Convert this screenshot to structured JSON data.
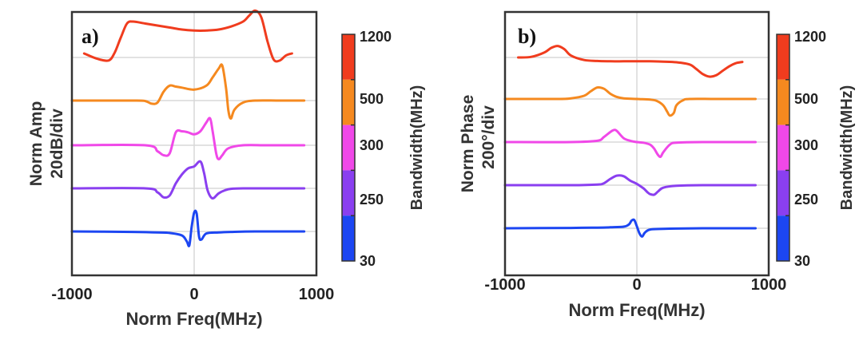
{
  "figure": {
    "panel_a": {
      "label": "a)",
      "xlabel": "Norm Freq(MHz)",
      "ylabel_line1": "Norm Amp",
      "ylabel_line2": "20dB/div",
      "xticks": [
        "-1000",
        "0",
        "1000"
      ],
      "colorbar_label": "Bandwidth(MHz)",
      "colorbar_ticks": [
        "1200",
        "500",
        "300",
        "250",
        "30"
      ]
    },
    "panel_b": {
      "label": "b)",
      "xlabel": "Norm Freq(MHz)",
      "ylabel_line1": "Norm Phase",
      "ylabel_line2": "200°/div",
      "xticks": [
        "-1000",
        "0",
        "1000"
      ],
      "colorbar_label": "Bandwidth(MHz)",
      "colorbar_ticks": [
        "1200",
        "500",
        "300",
        "250",
        "30"
      ]
    }
  },
  "chart_data": [
    {
      "type": "line",
      "panel": "a)",
      "xlabel": "Norm Freq(MHz)",
      "ylabel": "Norm Amp 20dB/div",
      "xlim": [
        -1000,
        1000
      ],
      "grid": true,
      "colors": {
        "1200": "#f03c1e",
        "500": "#f5891f",
        "300": "#f048e8",
        "250": "#8a3ff0",
        "30": "#1c46f2"
      },
      "colorbar": {
        "label": "Bandwidth(MHz)",
        "ticks": [
          "1200",
          "500",
          "300",
          "250",
          "30"
        ]
      },
      "series": [
        {
          "name": "1200",
          "color": "#f03c1e",
          "x": [
            -900,
            -800,
            -700,
            -650,
            -600,
            -550,
            -500,
            -400,
            -300,
            -200,
            -100,
            0,
            100,
            200,
            300,
            400,
            450,
            500,
            550,
            600,
            650,
            700,
            750,
            800
          ],
          "y": [
            0.4,
            -0.1,
            -0.3,
            0.5,
            2.0,
            3.4,
            3.6,
            3.4,
            3.2,
            3.0,
            2.8,
            2.7,
            2.7,
            2.8,
            3.1,
            3.6,
            4.2,
            4.7,
            4.0,
            1.6,
            -0.2,
            -0.3,
            0.2,
            0.4
          ]
        },
        {
          "name": "500",
          "color": "#f5891f",
          "x": [
            -1000,
            -500,
            -400,
            -350,
            -300,
            -250,
            -200,
            -150,
            -100,
            0,
            100,
            150,
            200,
            230,
            260,
            280,
            300,
            330,
            400,
            500,
            700,
            900
          ],
          "y": [
            0,
            0,
            -0.05,
            -0.3,
            -0.2,
            0.9,
            1.5,
            1.4,
            1.3,
            1.1,
            1.5,
            2.3,
            3.2,
            3.5,
            1.3,
            -1.0,
            -1.8,
            -0.9,
            -0.2,
            0,
            0,
            0
          ]
        },
        {
          "name": "300",
          "color": "#f048e8",
          "x": [
            -1000,
            -400,
            -300,
            -250,
            -200,
            -150,
            -100,
            -50,
            0,
            50,
            100,
            130,
            150,
            180,
            200,
            230,
            280,
            400,
            600,
            900
          ],
          "y": [
            0,
            0,
            -0.6,
            -1.0,
            -0.8,
            1.3,
            1.4,
            1.3,
            1.1,
            1.4,
            2.3,
            2.7,
            1.5,
            -0.8,
            -1.4,
            -1.0,
            -0.3,
            0,
            0,
            0
          ]
        },
        {
          "name": "250",
          "color": "#8a3ff0",
          "x": [
            -1000,
            -400,
            -300,
            -250,
            -200,
            -150,
            -100,
            -50,
            0,
            50,
            80,
            110,
            150,
            200,
            250,
            300,
            400,
            600,
            900
          ],
          "y": [
            0,
            0,
            -0.4,
            -0.9,
            -0.7,
            0.5,
            1.4,
            2.0,
            2.2,
            2.7,
            1.6,
            -0.2,
            -1.0,
            -0.5,
            -0.2,
            -0.05,
            0,
            0,
            0
          ]
        },
        {
          "name": "30",
          "color": "#1c46f2",
          "x": [
            -1000,
            -500,
            -300,
            -200,
            -100,
            -60,
            -40,
            -20,
            0,
            20,
            40,
            60,
            100,
            200,
            300,
            500,
            900
          ],
          "y": [
            0,
            -0.05,
            -0.1,
            -0.15,
            -0.4,
            -1.0,
            -1.4,
            0.5,
            1.9,
            1.8,
            -0.5,
            -0.8,
            -0.2,
            -0.1,
            -0.05,
            0,
            0
          ]
        }
      ]
    },
    {
      "type": "line",
      "panel": "b)",
      "xlabel": "Norm Freq(MHz)",
      "ylabel": "Norm Phase 200°/div",
      "xlim": [
        -1000,
        1000
      ],
      "grid": true,
      "colors": {
        "1200": "#f03c1e",
        "500": "#f5891f",
        "300": "#f048e8",
        "250": "#8a3ff0",
        "30": "#1c46f2"
      },
      "colorbar": {
        "label": "Bandwidth(MHz)",
        "ticks": [
          "1200",
          "500",
          "300",
          "250",
          "30"
        ]
      },
      "series": [
        {
          "name": "1200",
          "color": "#f03c1e",
          "x": [
            -900,
            -800,
            -700,
            -650,
            -600,
            -550,
            -500,
            -400,
            -300,
            -200,
            -100,
            0,
            100,
            200,
            300,
            400,
            450,
            500,
            550,
            600,
            650,
            700,
            750,
            800
          ],
          "y": [
            0.0,
            0.1,
            0.8,
            1.5,
            1.8,
            1.3,
            0.3,
            -0.4,
            -0.55,
            -0.6,
            -0.6,
            -0.6,
            -0.6,
            -0.65,
            -0.75,
            -1.1,
            -1.8,
            -2.6,
            -3.0,
            -2.8,
            -2.1,
            -1.4,
            -0.9,
            -0.7
          ]
        },
        {
          "name": "500",
          "color": "#f5891f",
          "x": [
            -1000,
            -600,
            -500,
            -400,
            -350,
            -300,
            -250,
            -200,
            -150,
            -100,
            0,
            100,
            150,
            200,
            230,
            250,
            280,
            300,
            350,
            400,
            600,
            900
          ],
          "y": [
            0,
            0,
            0.1,
            0.5,
            1.2,
            1.8,
            1.6,
            0.8,
            0.3,
            0.1,
            0,
            -0.1,
            -0.3,
            -1.0,
            -2.0,
            -2.6,
            -2.2,
            -1.0,
            -0.2,
            0,
            0,
            0
          ]
        },
        {
          "name": "300",
          "color": "#f048e8",
          "x": [
            -1000,
            -500,
            -300,
            -250,
            -200,
            -170,
            -150,
            -100,
            -50,
            0,
            50,
            100,
            130,
            160,
            180,
            200,
            250,
            300,
            500,
            900
          ],
          "y": [
            0,
            0,
            0.2,
            0.8,
            1.6,
            1.9,
            1.7,
            0.6,
            0.2,
            0,
            -0.1,
            -0.4,
            -1.0,
            -2.0,
            -2.3,
            -1.6,
            -0.4,
            -0.1,
            0,
            0
          ]
        },
        {
          "name": "250",
          "color": "#8a3ff0",
          "x": [
            -1000,
            -500,
            -300,
            -250,
            -200,
            -150,
            -100,
            -50,
            0,
            50,
            80,
            100,
            130,
            160,
            200,
            300,
            500,
            900
          ],
          "y": [
            0,
            0,
            0.1,
            0.3,
            1.0,
            1.5,
            1.4,
            0.7,
            0.2,
            -0.5,
            -1.1,
            -1.4,
            -1.5,
            -1.0,
            -0.4,
            -0.1,
            0,
            0
          ]
        },
        {
          "name": "30",
          "color": "#1c46f2",
          "x": [
            -1000,
            -500,
            -300,
            -200,
            -100,
            -60,
            -40,
            -20,
            0,
            20,
            40,
            60,
            100,
            200,
            300,
            500,
            900
          ],
          "y": [
            0,
            0.05,
            0.1,
            0.15,
            0.25,
            0.6,
            1.2,
            1.3,
            0.3,
            -0.8,
            -1.3,
            -0.7,
            -0.2,
            -0.1,
            -0.05,
            0,
            0
          ]
        }
      ]
    }
  ]
}
